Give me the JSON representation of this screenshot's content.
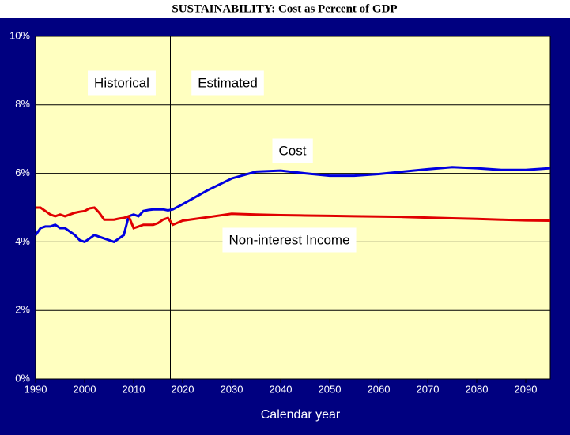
{
  "chart_data": {
    "type": "line",
    "title": "SUSTAINABILITY:  Cost as Percent of GDP",
    "x_label": "Calendar year",
    "x": [
      1990,
      1991,
      1992,
      1993,
      1994,
      1995,
      1996,
      1997,
      1998,
      1999,
      2000,
      2001,
      2002,
      2003,
      2004,
      2005,
      2006,
      2007,
      2008,
      2009,
      2010,
      2011,
      2012,
      2013,
      2014,
      2015,
      2016,
      2017,
      2018,
      2020,
      2025,
      2030,
      2035,
      2040,
      2045,
      2050,
      2055,
      2060,
      2065,
      2070,
      2075,
      2080,
      2085,
      2090,
      2095
    ],
    "series": [
      {
        "name": "Cost",
        "color": "#0000e0",
        "values": [
          4.2,
          4.4,
          4.45,
          4.45,
          4.5,
          4.4,
          4.4,
          4.3,
          4.2,
          4.05,
          4.0,
          4.1,
          4.2,
          4.15,
          4.1,
          4.05,
          4.0,
          4.1,
          4.2,
          4.75,
          4.8,
          4.75,
          4.9,
          4.93,
          4.95,
          4.95,
          4.95,
          4.92,
          4.95,
          5.1,
          5.5,
          5.85,
          6.05,
          6.08,
          6.0,
          5.93,
          5.93,
          5.98,
          6.05,
          6.12,
          6.18,
          6.15,
          6.1,
          6.1,
          6.15
        ]
      },
      {
        "name": "Non-interest Income",
        "color": "#e00000",
        "values": [
          5.0,
          5.0,
          4.9,
          4.8,
          4.75,
          4.8,
          4.75,
          4.8,
          4.85,
          4.88,
          4.9,
          4.98,
          5.0,
          4.85,
          4.65,
          4.65,
          4.65,
          4.68,
          4.7,
          4.75,
          4.4,
          4.45,
          4.5,
          4.5,
          4.5,
          4.55,
          4.65,
          4.7,
          4.5,
          4.62,
          4.72,
          4.82,
          4.8,
          4.78,
          4.77,
          4.76,
          4.75,
          4.74,
          4.73,
          4.71,
          4.69,
          4.67,
          4.65,
          4.63,
          4.62
        ]
      }
    ],
    "annotations": [
      "Historical",
      "Estimated"
    ],
    "divider_x": 2017.5,
    "xlim": [
      1990,
      2095
    ],
    "xticks": [
      1990,
      2000,
      2010,
      2020,
      2030,
      2040,
      2050,
      2060,
      2070,
      2080,
      2090
    ],
    "ylim": [
      0,
      10
    ],
    "yticks": [
      {
        "value": 0,
        "label": "0%"
      },
      {
        "value": 2,
        "label": "2%"
      },
      {
        "value": 4,
        "label": "4%"
      },
      {
        "value": 6,
        "label": "6%"
      },
      {
        "value": 8,
        "label": "8%"
      },
      {
        "value": 10,
        "label": "10%"
      }
    ],
    "grid": true
  }
}
